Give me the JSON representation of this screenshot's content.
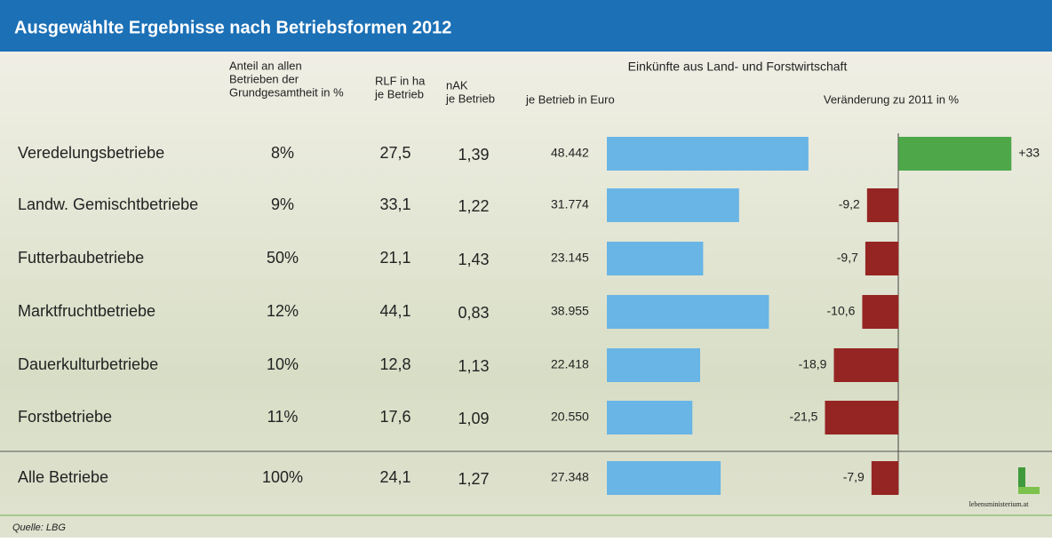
{
  "title": "Ausgewählte Ergebnisse nach Betriebsformen 2012",
  "headers": {
    "share": [
      "Anteil an allen",
      "Betrieben der",
      "Grundgesamtheit in %"
    ],
    "rlf": [
      "RLF in ha",
      "je Betrieb"
    ],
    "nak": [
      "nAK",
      "je Betrieb"
    ],
    "group": "Einkünfte aus Land- und Forstwirtschaft"
  },
  "table": {
    "share": [
      "8%",
      "9%",
      "50%",
      "12%",
      "10%",
      "11%",
      "100%"
    ],
    "rlf": [
      "27,5",
      "33,1",
      "21,1",
      "44,1",
      "12,8",
      "17,6",
      "24,1"
    ],
    "nak": [
      "1,39",
      "1,22",
      "1,43",
      "0,83",
      "1,13",
      "1,09",
      "1,27"
    ]
  },
  "chart_data": [
    {
      "type": "bar",
      "title": "je Betrieb in Euro",
      "categories": [
        "Veredelungsbetriebe",
        "Landw. Gemischtbetriebe",
        "Futterbaubetriebe",
        "Marktfruchtbetriebe",
        "Dauerkulturbetriebe",
        "Forstbetriebe",
        "Alle Betriebe"
      ],
      "values": [
        48442,
        31774,
        23145,
        38955,
        22418,
        20550,
        27348
      ],
      "value_labels": [
        "48.442",
        "31.774",
        "23.145",
        "38.955",
        "22.418",
        "20.550",
        "27.348"
      ],
      "color": "#69b5e5",
      "xlim": [
        0,
        60000
      ]
    },
    {
      "type": "bar",
      "title": "Veränderung zu 2011 in %",
      "values": [
        33,
        -9.2,
        -9.7,
        -10.6,
        -18.9,
        -21.5,
        -7.9
      ],
      "value_labels": [
        "+33",
        "-9,2",
        "-9,7",
        "-10,6",
        "-18,9",
        "-21,5",
        "-7,9"
      ],
      "color": "#952523",
      "positive_color": "#4ea84a",
      "xlim": [
        -25,
        35
      ]
    }
  ],
  "source": "Quelle: LBG",
  "logo": "lebensministerium.at"
}
